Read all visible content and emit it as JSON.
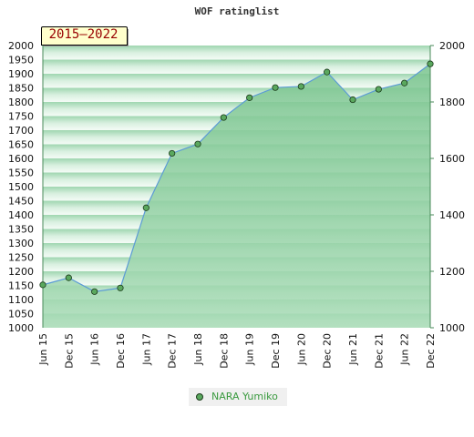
{
  "chart_data": {
    "type": "area",
    "title": "WOF ratinglist",
    "badge": "2015–2022",
    "categories": [
      "Jun 15",
      "Dec 15",
      "Jun 16",
      "Dec 16",
      "Jun 17",
      "Dec 17",
      "Jun 18",
      "Dec 18",
      "Jun 19",
      "Dec 19",
      "Jun 20",
      "Dec 20",
      "Jun 21",
      "Dec 21",
      "Jun 22",
      "Dec 22"
    ],
    "series": [
      {
        "name": "NARA Yumiko",
        "values": [
          1152,
          1177,
          1128,
          1141,
          1425,
          1618,
          1651,
          1745,
          1815,
          1851,
          1855,
          1906,
          1808,
          1845,
          1867,
          1935
        ]
      }
    ],
    "left_axis": {
      "min": 1000,
      "max": 2000,
      "step": 50
    },
    "right_axis": {
      "min": 1000,
      "max": 2000,
      "step": 200
    },
    "legend": "bottom-center",
    "colors": {
      "area": "#82c894",
      "line": "#5b9bd5",
      "marker": "#5aa85e"
    }
  }
}
